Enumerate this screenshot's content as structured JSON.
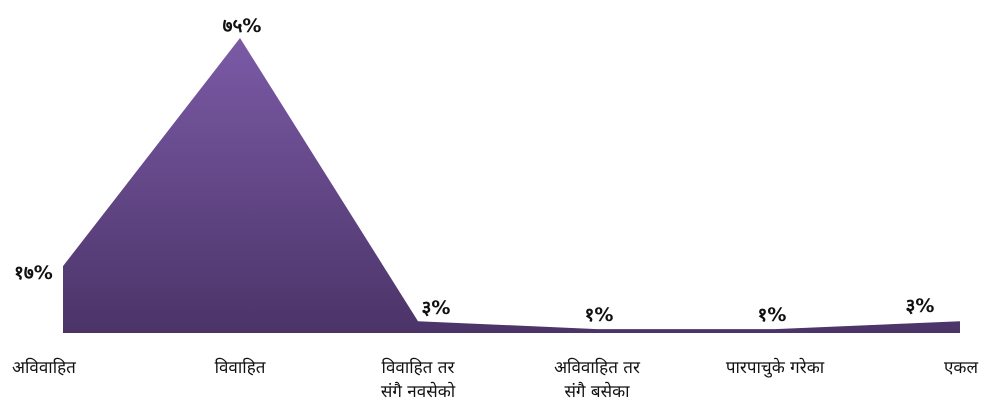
{
  "chart_data": {
    "type": "area",
    "categories": [
      [
        "अविवाहित"
      ],
      [
        "विवाहित"
      ],
      [
        "विवाहित  तर",
        "संगै नवसेको"
      ],
      [
        "अविवाहित तर",
        "संगै बसेका"
      ],
      [
        "पारपाचुके गरेका"
      ],
      [
        "एकल"
      ]
    ],
    "values": [
      17,
      75,
      3,
      1,
      1,
      3
    ],
    "data_labels": [
      "१७%",
      "७५%",
      "३%",
      "१%",
      "१%",
      "३%"
    ],
    "unit": "%",
    "ylim": [
      0,
      75
    ],
    "grid": false,
    "legend": "none",
    "colors": {
      "fill_top": "#7b5aa6",
      "fill_bottom": "#4b3468",
      "text": "#111111"
    }
  }
}
